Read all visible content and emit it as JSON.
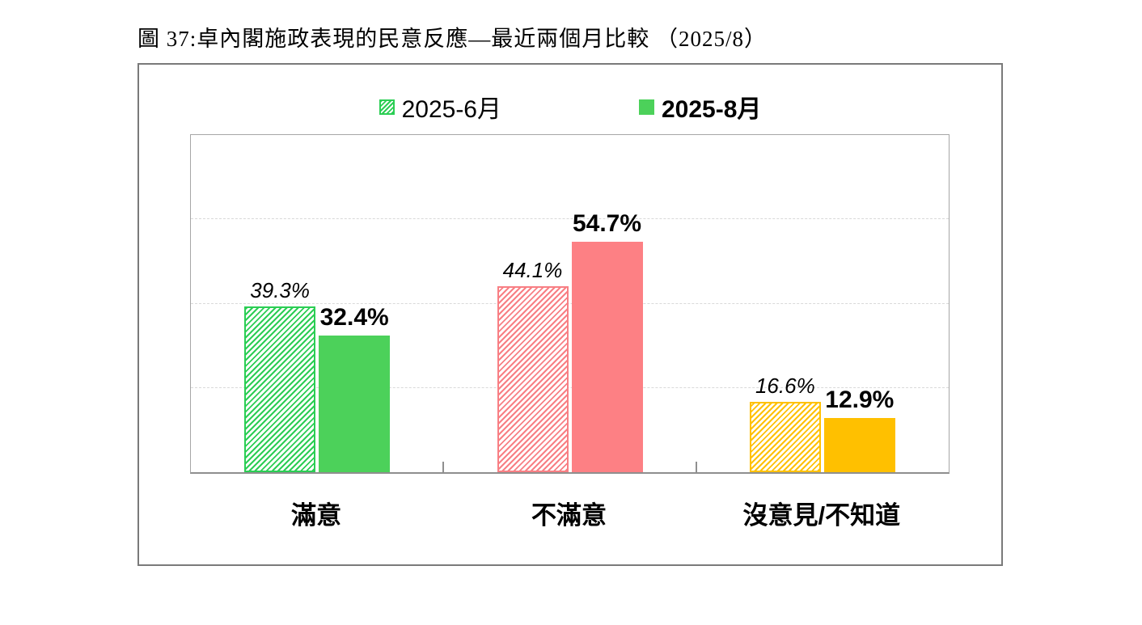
{
  "page": {
    "title": "圖 37:卓內閣施政表現的民意反應—最近兩個月比較 （2025/8）"
  },
  "chart_data": {
    "type": "bar",
    "title": "圖 37:卓內閣施政表現的民意反應—最近兩個月比較 （2025/8）",
    "categories": [
      "滿意",
      "不滿意",
      "沒意見/不知道"
    ],
    "series": [
      {
        "name": "2025-6月",
        "style": "hatched",
        "values": [
          39.3,
          44.1,
          16.6
        ],
        "legend_color": "#2bce54"
      },
      {
        "name": "2025-8月",
        "style": "solid",
        "values": [
          32.4,
          54.7,
          12.9
        ],
        "legend_color": "#4cd15a"
      }
    ],
    "value_suffix": "%",
    "xlabel": "",
    "ylabel": "",
    "ylim": [
      0,
      80
    ],
    "grid_step": 20,
    "grid": "horizontal-dashed",
    "legend_position": "top",
    "category_colors": [
      {
        "hatch": "#2bce54",
        "solid": "#4cd15a"
      },
      {
        "hatch": "#f87f84",
        "solid": "#fd8084"
      },
      {
        "hatch": "#ffc103",
        "solid": "#ffc000"
      }
    ],
    "colors": {
      "gridline": "#d9d9d9",
      "axis": "#8f8f8f",
      "plot_border": "#a6a6a6",
      "frame_border": "#7a7a7a"
    }
  }
}
